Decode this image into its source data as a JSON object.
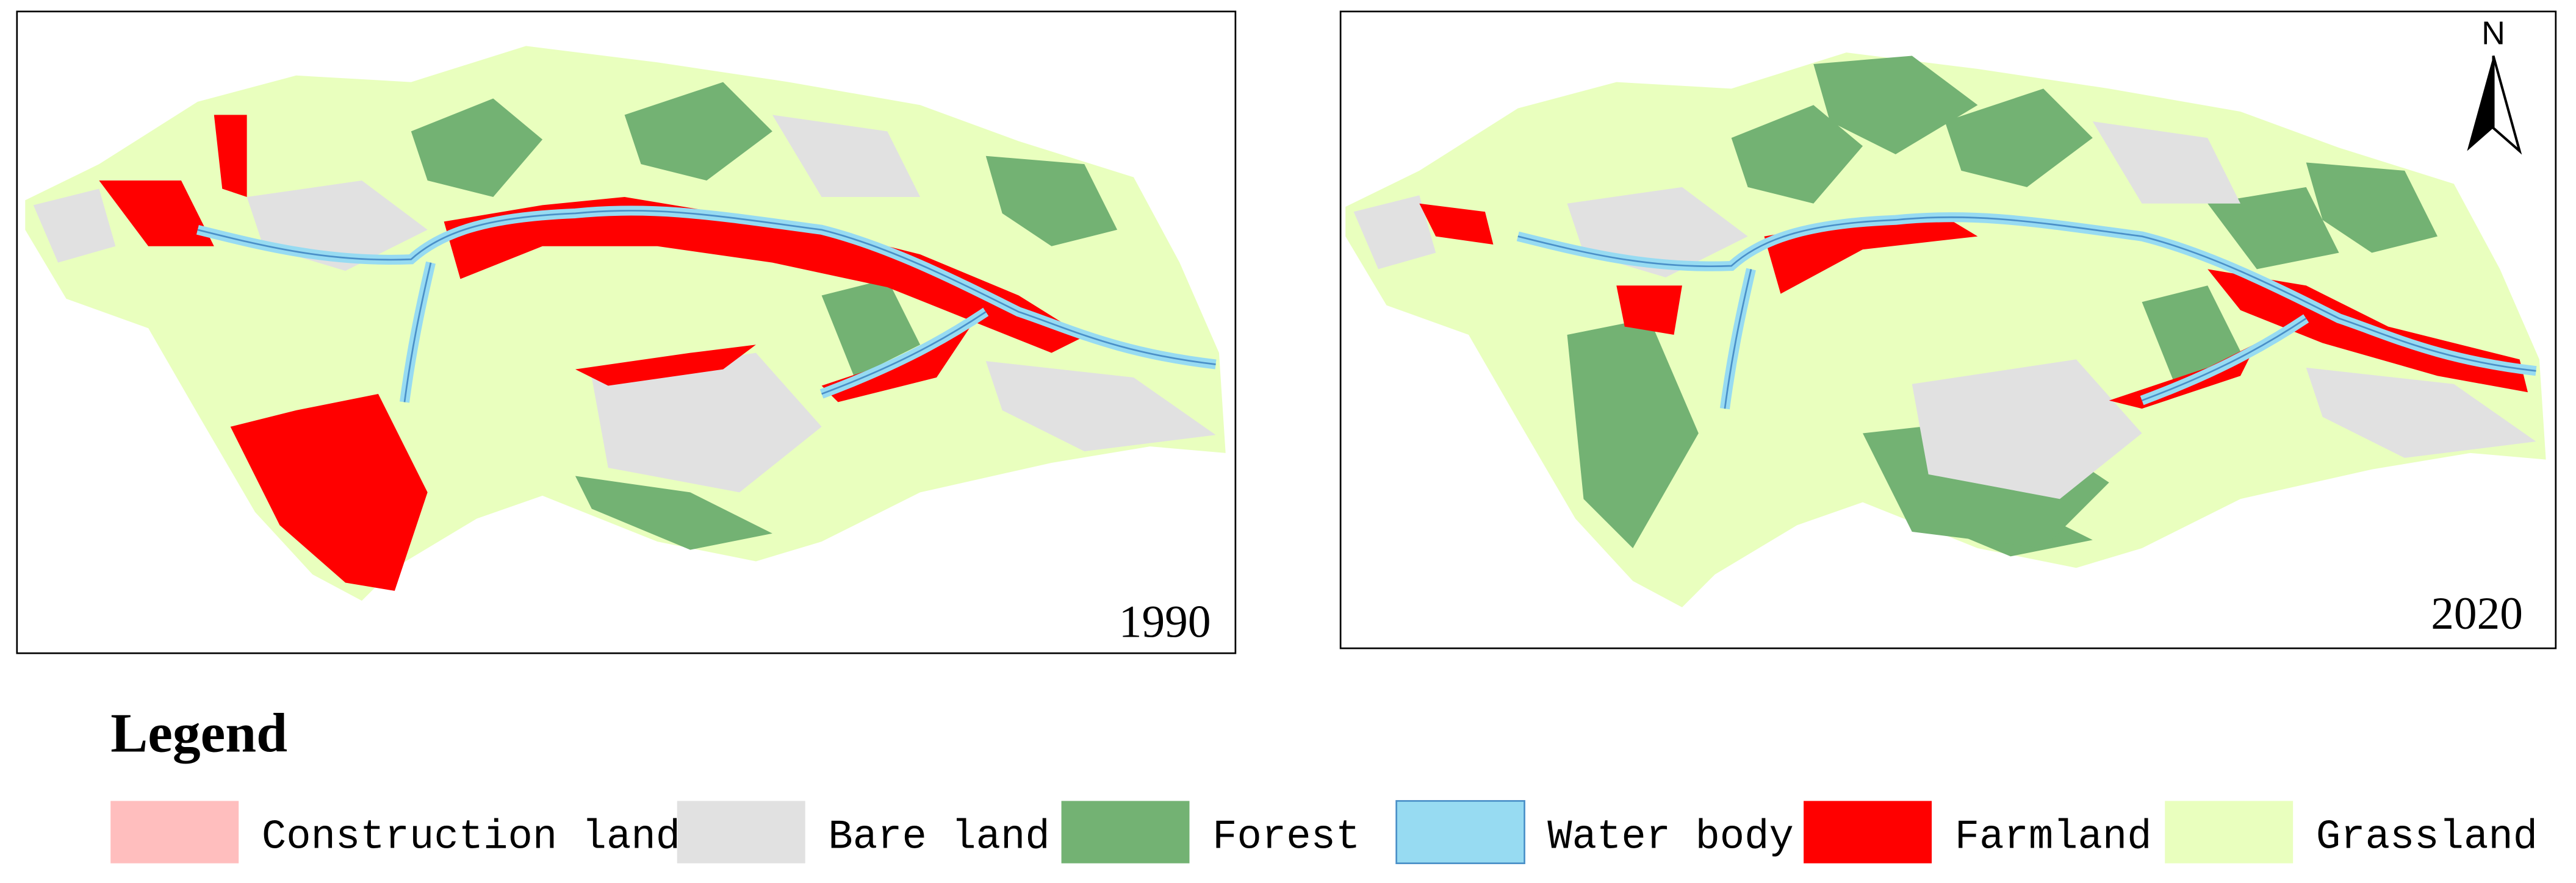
{
  "panels": [
    {
      "year": "1990"
    },
    {
      "year": "2020"
    }
  ],
  "north_arrow": "N",
  "legend": {
    "title": "Legend",
    "items": [
      {
        "label": "Construction land",
        "color": "#ffbebe"
      },
      {
        "label": "Bare land",
        "color": "#e1e1e1"
      },
      {
        "label": "Forest",
        "color": "#73b273"
      },
      {
        "label": "Water body",
        "color": "#97dbf2"
      },
      {
        "label": "Farmland",
        "color": "#ff0000"
      },
      {
        "label": "Grassland",
        "color": "#e9ffbe"
      }
    ]
  }
}
